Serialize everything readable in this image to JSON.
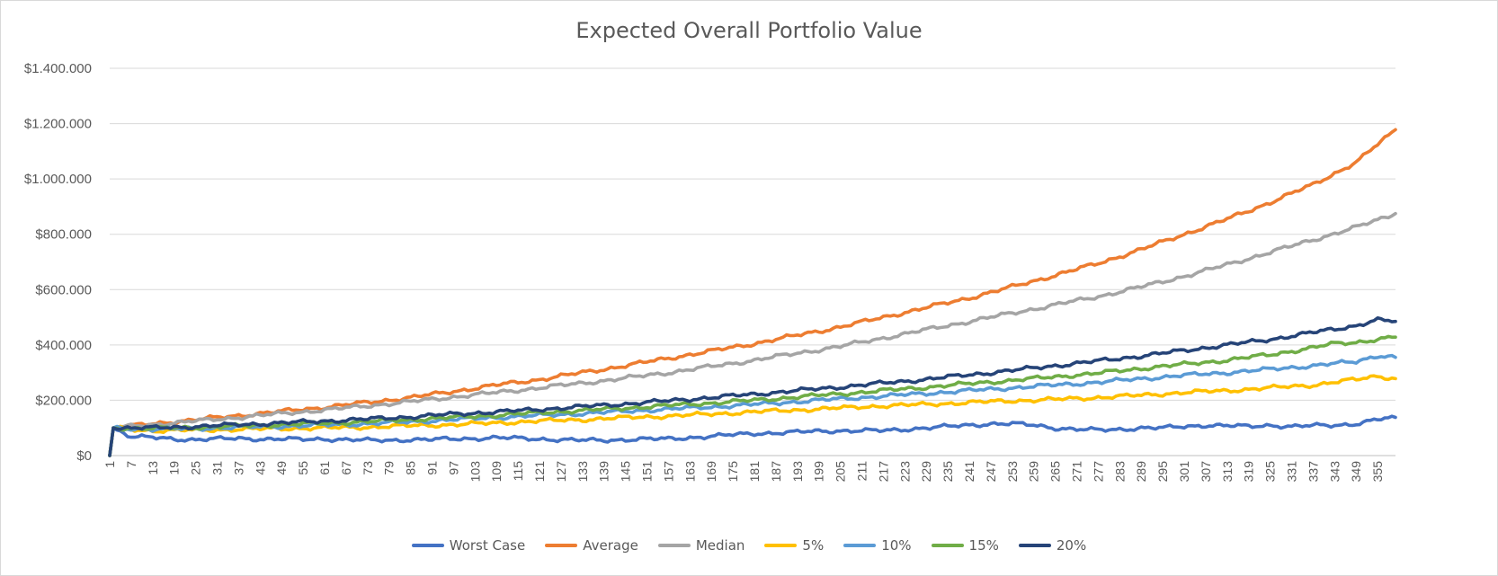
{
  "chart_data": {
    "type": "line",
    "title": "Expected Overall Portfolio Value",
    "xlabel": "",
    "ylabel": "",
    "ylim": [
      0,
      1400000
    ],
    "y_tick_labels": [
      "$0",
      "$200.000",
      "$400.000",
      "$600.000",
      "$800.000",
      "$1.000.000",
      "$1.200.000",
      "$1.400.000"
    ],
    "x_range": [
      1,
      360
    ],
    "x_tick_labels": [
      "1",
      "7",
      "13",
      "19",
      "25",
      "31",
      "37",
      "43",
      "49",
      "55",
      "61",
      "67",
      "73",
      "79",
      "85",
      "91",
      "97",
      "103",
      "109",
      "115",
      "121",
      "127",
      "133",
      "139",
      "145",
      "151",
      "157",
      "163",
      "169",
      "175",
      "181",
      "187",
      "193",
      "199",
      "205",
      "211",
      "217",
      "223",
      "229",
      "235",
      "241",
      "247",
      "253",
      "259",
      "265",
      "271",
      "277",
      "283",
      "289",
      "295",
      "301",
      "307",
      "313",
      "319",
      "325",
      "331",
      "337",
      "343",
      "349",
      "355"
    ],
    "grid": "horizontal",
    "legend_position": "bottom",
    "series": [
      {
        "name": "Worst Case",
        "color": "#4472C4",
        "points": [
          [
            1,
            0
          ],
          [
            2,
            100000
          ],
          [
            7,
            68000
          ],
          [
            13,
            65000
          ],
          [
            19,
            60000
          ],
          [
            25,
            58000
          ],
          [
            31,
            60000
          ],
          [
            37,
            62000
          ],
          [
            43,
            60000
          ],
          [
            49,
            60000
          ],
          [
            55,
            58000
          ],
          [
            61,
            60000
          ],
          [
            67,
            58000
          ],
          [
            73,
            55000
          ],
          [
            79,
            55000
          ],
          [
            85,
            58000
          ],
          [
            91,
            58000
          ],
          [
            97,
            60000
          ],
          [
            103,
            62000
          ],
          [
            109,
            65000
          ],
          [
            115,
            62000
          ],
          [
            121,
            60000
          ],
          [
            127,
            58000
          ],
          [
            133,
            55000
          ],
          [
            139,
            55000
          ],
          [
            145,
            58000
          ],
          [
            151,
            60000
          ],
          [
            157,
            60000
          ],
          [
            163,
            65000
          ],
          [
            169,
            70000
          ],
          [
            175,
            75000
          ],
          [
            181,
            80000
          ],
          [
            187,
            82000
          ],
          [
            193,
            85000
          ],
          [
            199,
            88000
          ],
          [
            205,
            90000
          ],
          [
            211,
            90000
          ],
          [
            217,
            90000
          ],
          [
            223,
            95000
          ],
          [
            229,
            100000
          ],
          [
            235,
            105000
          ],
          [
            241,
            110000
          ],
          [
            247,
            115000
          ],
          [
            253,
            115000
          ],
          [
            259,
            110000
          ],
          [
            265,
            100000
          ],
          [
            271,
            95000
          ],
          [
            277,
            92000
          ],
          [
            283,
            95000
          ],
          [
            289,
            100000
          ],
          [
            295,
            100000
          ],
          [
            301,
            105000
          ],
          [
            307,
            110000
          ],
          [
            313,
            108000
          ],
          [
            319,
            105000
          ],
          [
            325,
            110000
          ],
          [
            331,
            105000
          ],
          [
            337,
            108000
          ],
          [
            343,
            110000
          ],
          [
            349,
            115000
          ],
          [
            355,
            130000
          ],
          [
            360,
            138000
          ]
        ]
      },
      {
        "name": "Average",
        "color": "#ED7D31",
        "points": [
          [
            1,
            0
          ],
          [
            2,
            100000
          ],
          [
            13,
            115000
          ],
          [
            25,
            130000
          ],
          [
            37,
            145000
          ],
          [
            49,
            160000
          ],
          [
            61,
            175000
          ],
          [
            73,
            192000
          ],
          [
            85,
            210000
          ],
          [
            97,
            232000
          ],
          [
            109,
            255000
          ],
          [
            121,
            275000
          ],
          [
            133,
            300000
          ],
          [
            145,
            325000
          ],
          [
            157,
            352000
          ],
          [
            169,
            378000
          ],
          [
            181,
            405000
          ],
          [
            193,
            435000
          ],
          [
            205,
            465000
          ],
          [
            217,
            500000
          ],
          [
            229,
            535000
          ],
          [
            241,
            570000
          ],
          [
            253,
            610000
          ],
          [
            265,
            652000
          ],
          [
            277,
            695000
          ],
          [
            289,
            745000
          ],
          [
            301,
            800000
          ],
          [
            313,
            855000
          ],
          [
            325,
            915000
          ],
          [
            337,
            980000
          ],
          [
            349,
            1060000
          ],
          [
            360,
            1178000
          ]
        ]
      },
      {
        "name": "Median",
        "color": "#A5A5A5",
        "points": [
          [
            1,
            0
          ],
          [
            2,
            100000
          ],
          [
            13,
            112000
          ],
          [
            25,
            125000
          ],
          [
            37,
            138000
          ],
          [
            49,
            152000
          ],
          [
            61,
            165000
          ],
          [
            73,
            180000
          ],
          [
            85,
            195000
          ],
          [
            97,
            212000
          ],
          [
            109,
            228000
          ],
          [
            121,
            245000
          ],
          [
            133,
            262000
          ],
          [
            145,
            280000
          ],
          [
            157,
            300000
          ],
          [
            169,
            322000
          ],
          [
            181,
            345000
          ],
          [
            193,
            370000
          ],
          [
            205,
            395000
          ],
          [
            217,
            425000
          ],
          [
            229,
            455000
          ],
          [
            241,
            485000
          ],
          [
            253,
            515000
          ],
          [
            265,
            545000
          ],
          [
            277,
            575000
          ],
          [
            289,
            610000
          ],
          [
            301,
            648000
          ],
          [
            313,
            690000
          ],
          [
            325,
            735000
          ],
          [
            337,
            780000
          ],
          [
            349,
            825000
          ],
          [
            360,
            875000
          ]
        ]
      },
      {
        "name": "5%",
        "color": "#FFC000",
        "points": [
          [
            1,
            0
          ],
          [
            2,
            100000
          ],
          [
            13,
            90000
          ],
          [
            25,
            92000
          ],
          [
            37,
            95000
          ],
          [
            49,
            98000
          ],
          [
            61,
            100000
          ],
          [
            73,
            103000
          ],
          [
            85,
            108000
          ],
          [
            97,
            112000
          ],
          [
            109,
            118000
          ],
          [
            121,
            125000
          ],
          [
            133,
            130000
          ],
          [
            145,
            137000
          ],
          [
            157,
            143000
          ],
          [
            169,
            150000
          ],
          [
            181,
            158000
          ],
          [
            193,
            165000
          ],
          [
            205,
            172000
          ],
          [
            217,
            180000
          ],
          [
            229,
            185000
          ],
          [
            241,
            192000
          ],
          [
            253,
            198000
          ],
          [
            265,
            203000
          ],
          [
            277,
            210000
          ],
          [
            289,
            218000
          ],
          [
            301,
            228000
          ],
          [
            313,
            235000
          ],
          [
            325,
            245000
          ],
          [
            337,
            255000
          ],
          [
            349,
            275000
          ],
          [
            355,
            288000
          ],
          [
            360,
            278000
          ]
        ]
      },
      {
        "name": "10%",
        "color": "#5B9BD5",
        "points": [
          [
            1,
            0
          ],
          [
            2,
            100000
          ],
          [
            13,
            95000
          ],
          [
            25,
            98000
          ],
          [
            37,
            102000
          ],
          [
            49,
            106000
          ],
          [
            61,
            110000
          ],
          [
            73,
            115000
          ],
          [
            85,
            122000
          ],
          [
            97,
            130000
          ],
          [
            109,
            138000
          ],
          [
            121,
            145000
          ],
          [
            133,
            152000
          ],
          [
            145,
            160000
          ],
          [
            157,
            168000
          ],
          [
            169,
            176000
          ],
          [
            181,
            185000
          ],
          [
            193,
            195000
          ],
          [
            205,
            205000
          ],
          [
            217,
            215000
          ],
          [
            229,
            225000
          ],
          [
            241,
            235000
          ],
          [
            253,
            245000
          ],
          [
            265,
            255000
          ],
          [
            277,
            265000
          ],
          [
            289,
            278000
          ],
          [
            301,
            290000
          ],
          [
            313,
            300000
          ],
          [
            325,
            312000
          ],
          [
            337,
            325000
          ],
          [
            349,
            340000
          ],
          [
            355,
            362000
          ],
          [
            360,
            355000
          ]
        ]
      },
      {
        "name": "15%",
        "color": "#70AD47",
        "points": [
          [
            1,
            0
          ],
          [
            2,
            100000
          ],
          [
            13,
            98000
          ],
          [
            25,
            102000
          ],
          [
            37,
            107000
          ],
          [
            49,
            112000
          ],
          [
            61,
            117000
          ],
          [
            73,
            123000
          ],
          [
            85,
            130000
          ],
          [
            97,
            138000
          ],
          [
            109,
            146000
          ],
          [
            121,
            155000
          ],
          [
            133,
            163000
          ],
          [
            145,
            172000
          ],
          [
            157,
            181000
          ],
          [
            169,
            190000
          ],
          [
            181,
            200000
          ],
          [
            193,
            212000
          ],
          [
            205,
            223000
          ],
          [
            217,
            235000
          ],
          [
            229,
            247000
          ],
          [
            241,
            260000
          ],
          [
            253,
            272000
          ],
          [
            265,
            285000
          ],
          [
            277,
            298000
          ],
          [
            289,
            315000
          ],
          [
            301,
            330000
          ],
          [
            313,
            345000
          ],
          [
            325,
            365000
          ],
          [
            337,
            390000
          ],
          [
            343,
            405000
          ],
          [
            349,
            410000
          ],
          [
            355,
            420000
          ],
          [
            360,
            428000
          ]
        ]
      },
      {
        "name": "20%",
        "color": "#264478",
        "points": [
          [
            1,
            0
          ],
          [
            2,
            100000
          ],
          [
            13,
            100000
          ],
          [
            25,
            105000
          ],
          [
            37,
            112000
          ],
          [
            49,
            118000
          ],
          [
            61,
            125000
          ],
          [
            73,
            132000
          ],
          [
            85,
            140000
          ],
          [
            97,
            150000
          ],
          [
            109,
            158000
          ],
          [
            121,
            167000
          ],
          [
            133,
            177000
          ],
          [
            145,
            187000
          ],
          [
            157,
            198000
          ],
          [
            169,
            210000
          ],
          [
            181,
            222000
          ],
          [
            193,
            235000
          ],
          [
            205,
            248000
          ],
          [
            217,
            262000
          ],
          [
            229,
            276000
          ],
          [
            241,
            292000
          ],
          [
            253,
            308000
          ],
          [
            265,
            325000
          ],
          [
            277,
            342000
          ],
          [
            289,
            360000
          ],
          [
            301,
            380000
          ],
          [
            313,
            400000
          ],
          [
            325,
            420000
          ],
          [
            337,
            445000
          ],
          [
            349,
            470000
          ],
          [
            355,
            490000
          ],
          [
            360,
            485000
          ]
        ]
      }
    ]
  }
}
